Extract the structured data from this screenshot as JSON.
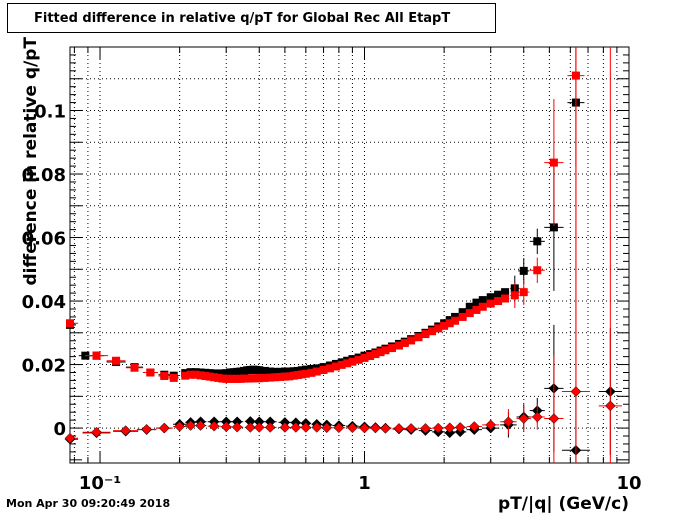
{
  "timestamp": "Mon Apr 30 09:20:49 2018",
  "chart_data": {
    "type": "scatter",
    "title": "Fitted difference in relative q/pT for Global Rec All EtapT",
    "xlabel": "pT/|q| (GeV/c)",
    "ylabel": "difference in relative q/pT",
    "xscale": "log",
    "xlim": [
      0.077,
      10
    ],
    "ylim": [
      -0.011,
      0.12
    ],
    "xticklabels": [
      {
        "value": 0.1,
        "label": "10⁻¹"
      },
      {
        "value": 1,
        "label": "1"
      },
      {
        "value": 10,
        "label": "10"
      }
    ],
    "yticklabels": [
      {
        "value": 0,
        "label": "0"
      },
      {
        "value": 0.02,
        "label": "0.02"
      },
      {
        "value": 0.04,
        "label": "0.04"
      },
      {
        "value": 0.06,
        "label": "0.06"
      },
      {
        "value": 0.08,
        "label": "0.08"
      },
      {
        "value": 0.1,
        "label": "0.1"
      }
    ],
    "grid": true,
    "series": [
      {
        "color": "#000000",
        "marker": "square",
        "points": [
          [
            0.077,
            0.0325
          ],
          [
            0.088,
            0.0228
          ],
          [
            0.097,
            0.0228
          ],
          [
            0.115,
            0.0208
          ],
          [
            0.135,
            0.0192
          ],
          [
            0.155,
            0.0175
          ],
          [
            0.175,
            0.0168
          ],
          [
            0.19,
            0.0165
          ],
          [
            0.21,
            0.0173
          ],
          [
            0.22,
            0.0176
          ],
          [
            0.23,
            0.0176
          ],
          [
            0.24,
            0.0175
          ],
          [
            0.25,
            0.0174
          ],
          [
            0.26,
            0.0173
          ],
          [
            0.27,
            0.0172
          ],
          [
            0.28,
            0.0172
          ],
          [
            0.29,
            0.0172
          ],
          [
            0.3,
            0.0173
          ],
          [
            0.31,
            0.0175
          ],
          [
            0.32,
            0.0176
          ],
          [
            0.33,
            0.0177
          ],
          [
            0.34,
            0.0178
          ],
          [
            0.35,
            0.018
          ],
          [
            0.36,
            0.0182
          ],
          [
            0.37,
            0.0183
          ],
          [
            0.38,
            0.0184
          ],
          [
            0.39,
            0.0183
          ],
          [
            0.4,
            0.0182
          ],
          [
            0.42,
            0.018
          ],
          [
            0.44,
            0.0178
          ],
          [
            0.46,
            0.0177
          ],
          [
            0.48,
            0.0177
          ],
          [
            0.5,
            0.0178
          ],
          [
            0.52,
            0.0178
          ],
          [
            0.54,
            0.0179
          ],
          [
            0.56,
            0.018
          ],
          [
            0.58,
            0.0182
          ],
          [
            0.6,
            0.0184
          ],
          [
            0.63,
            0.0186
          ],
          [
            0.66,
            0.0188
          ],
          [
            0.7,
            0.0192
          ],
          [
            0.74,
            0.0197
          ],
          [
            0.78,
            0.0202
          ],
          [
            0.82,
            0.0207
          ],
          [
            0.86,
            0.0212
          ],
          [
            0.9,
            0.0217
          ],
          [
            0.95,
            0.0222
          ],
          [
            1.0,
            0.0228
          ],
          [
            1.05,
            0.0233
          ],
          [
            1.1,
            0.0238
          ],
          [
            1.15,
            0.0244
          ],
          [
            1.2,
            0.025
          ],
          [
            1.27,
            0.0257
          ],
          [
            1.35,
            0.0265
          ],
          [
            1.42,
            0.0272
          ],
          [
            1.5,
            0.028
          ],
          [
            1.6,
            0.029
          ],
          [
            1.7,
            0.03
          ],
          [
            1.8,
            0.031
          ],
          [
            1.9,
            0.032
          ],
          [
            2.0,
            0.033
          ],
          [
            2.1,
            0.034
          ],
          [
            2.2,
            0.035
          ],
          [
            2.35,
            0.0365
          ],
          [
            2.5,
            0.0382
          ],
          [
            2.65,
            0.0395
          ],
          [
            2.8,
            0.0403
          ],
          [
            3.0,
            0.0412
          ],
          [
            3.2,
            0.042
          ],
          [
            3.4,
            0.0428
          ],
          [
            3.7,
            0.044
          ],
          [
            4.0,
            0.0495
          ],
          [
            4.5,
            0.0588
          ],
          [
            5.2,
            0.0632
          ],
          [
            6.3,
            0.1025
          ]
        ]
      },
      {
        "color": "#ff0000",
        "marker": "square",
        "points": [
          [
            0.077,
            0.033
          ],
          [
            0.097,
            0.0228
          ],
          [
            0.115,
            0.0212
          ],
          [
            0.135,
            0.019
          ],
          [
            0.155,
            0.0175
          ],
          [
            0.175,
            0.0164
          ],
          [
            0.19,
            0.0158
          ],
          [
            0.21,
            0.0165
          ],
          [
            0.22,
            0.0168
          ],
          [
            0.23,
            0.0168
          ],
          [
            0.24,
            0.0166
          ],
          [
            0.25,
            0.0164
          ],
          [
            0.26,
            0.0162
          ],
          [
            0.27,
            0.016
          ],
          [
            0.28,
            0.0158
          ],
          [
            0.29,
            0.0156
          ],
          [
            0.3,
            0.0155
          ],
          [
            0.31,
            0.0155
          ],
          [
            0.32,
            0.0155
          ],
          [
            0.33,
            0.0155
          ],
          [
            0.34,
            0.0155
          ],
          [
            0.35,
            0.0156
          ],
          [
            0.36,
            0.0156
          ],
          [
            0.37,
            0.0156
          ],
          [
            0.38,
            0.0157
          ],
          [
            0.39,
            0.0157
          ],
          [
            0.4,
            0.0157
          ],
          [
            0.42,
            0.0158
          ],
          [
            0.44,
            0.0159
          ],
          [
            0.46,
            0.016
          ],
          [
            0.48,
            0.0161
          ],
          [
            0.5,
            0.0162
          ],
          [
            0.52,
            0.0163
          ],
          [
            0.54,
            0.0165
          ],
          [
            0.56,
            0.0167
          ],
          [
            0.58,
            0.0169
          ],
          [
            0.6,
            0.0171
          ],
          [
            0.63,
            0.0174
          ],
          [
            0.66,
            0.0178
          ],
          [
            0.7,
            0.0183
          ],
          [
            0.74,
            0.0188
          ],
          [
            0.78,
            0.0194
          ],
          [
            0.82,
            0.0199
          ],
          [
            0.86,
            0.0204
          ],
          [
            0.9,
            0.0209
          ],
          [
            0.95,
            0.0215
          ],
          [
            1.0,
            0.0221
          ],
          [
            1.05,
            0.0227
          ],
          [
            1.1,
            0.0233
          ],
          [
            1.15,
            0.0239
          ],
          [
            1.2,
            0.0245
          ],
          [
            1.27,
            0.0252
          ],
          [
            1.35,
            0.026
          ],
          [
            1.42,
            0.0268
          ],
          [
            1.5,
            0.0276
          ],
          [
            1.6,
            0.0286
          ],
          [
            1.7,
            0.0296
          ],
          [
            1.8,
            0.0305
          ],
          [
            1.9,
            0.0314
          ],
          [
            2.0,
            0.0322
          ],
          [
            2.1,
            0.033
          ],
          [
            2.2,
            0.0338
          ],
          [
            2.35,
            0.035
          ],
          [
            2.5,
            0.0362
          ],
          [
            2.65,
            0.0372
          ],
          [
            2.8,
            0.0382
          ],
          [
            3.0,
            0.0392
          ],
          [
            3.2,
            0.04
          ],
          [
            3.4,
            0.0408
          ],
          [
            3.7,
            0.0418
          ],
          [
            4.0,
            0.0428
          ],
          [
            4.5,
            0.0497
          ],
          [
            5.2,
            0.0836
          ],
          [
            6.3,
            0.111
          ]
        ]
      },
      {
        "color": "#000000",
        "marker": "diamond",
        "points": [
          [
            0.077,
            -0.0035
          ],
          [
            0.097,
            -0.0015
          ],
          [
            0.125,
            -0.001
          ],
          [
            0.15,
            -0.0005
          ],
          [
            0.175,
            0.0
          ],
          [
            0.2,
            0.0012
          ],
          [
            0.22,
            0.0018
          ],
          [
            0.24,
            0.002
          ],
          [
            0.27,
            0.002
          ],
          [
            0.3,
            0.002
          ],
          [
            0.33,
            0.002
          ],
          [
            0.37,
            0.0021
          ],
          [
            0.4,
            0.002
          ],
          [
            0.44,
            0.002
          ],
          [
            0.5,
            0.0018
          ],
          [
            0.55,
            0.0017
          ],
          [
            0.6,
            0.0015
          ],
          [
            0.66,
            0.0012
          ],
          [
            0.72,
            0.001
          ],
          [
            0.8,
            0.0008
          ],
          [
            0.9,
            0.0006
          ],
          [
            1.0,
            0.0004
          ],
          [
            1.1,
            0.0002
          ],
          [
            1.2,
            0.0
          ],
          [
            1.35,
            -0.0003
          ],
          [
            1.5,
            -0.0005
          ],
          [
            1.7,
            -0.0008
          ],
          [
            1.9,
            -0.0012
          ],
          [
            2.1,
            -0.0015
          ],
          [
            2.3,
            -0.0012
          ],
          [
            2.6,
            -0.0005
          ],
          [
            3.0,
            0.0
          ],
          [
            3.5,
            0.001
          ],
          [
            4.0,
            0.0035
          ],
          [
            4.5,
            0.0055
          ],
          [
            5.2,
            0.0125
          ],
          [
            6.3,
            -0.007
          ],
          [
            8.5,
            0.0115
          ]
        ]
      },
      {
        "color": "#ff0000",
        "marker": "diamond",
        "points": [
          [
            0.077,
            -0.0032
          ],
          [
            0.097,
            -0.0013
          ],
          [
            0.125,
            -0.0008
          ],
          [
            0.15,
            -0.0004
          ],
          [
            0.175,
            0.0
          ],
          [
            0.2,
            0.0005
          ],
          [
            0.22,
            0.0008
          ],
          [
            0.24,
            0.0008
          ],
          [
            0.27,
            0.0006
          ],
          [
            0.3,
            0.0004
          ],
          [
            0.33,
            0.0003
          ],
          [
            0.37,
            0.0002
          ],
          [
            0.4,
            0.0002
          ],
          [
            0.44,
            0.0002
          ],
          [
            0.5,
            0.0002
          ],
          [
            0.55,
            0.0002
          ],
          [
            0.6,
            0.0002
          ],
          [
            0.66,
            0.0002
          ],
          [
            0.72,
            0.0001
          ],
          [
            0.8,
            0.0001
          ],
          [
            0.9,
            0.0001
          ],
          [
            1.0,
            0.0
          ],
          [
            1.1,
            0.0
          ],
          [
            1.2,
            -0.0001
          ],
          [
            1.35,
            -0.0001
          ],
          [
            1.5,
            -0.0001
          ],
          [
            1.7,
            -0.0001
          ],
          [
            1.9,
            0.0
          ],
          [
            2.1,
            0.0001
          ],
          [
            2.3,
            0.0002
          ],
          [
            2.6,
            0.0005
          ],
          [
            3.0,
            0.001
          ],
          [
            3.5,
            0.002
          ],
          [
            4.0,
            0.003
          ],
          [
            4.5,
            0.0035
          ],
          [
            5.2,
            0.003
          ],
          [
            6.3,
            0.0115
          ],
          [
            8.5,
            0.007
          ]
        ]
      }
    ]
  }
}
